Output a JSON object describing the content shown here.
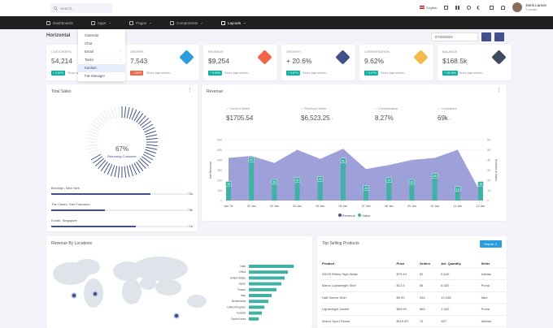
{
  "search": {
    "placeholder": "Search..."
  },
  "header": {
    "language": "English",
    "user_name": "Doris Larson",
    "user_role": "Founder"
  },
  "nav": {
    "items": [
      {
        "label": "Dashboards",
        "active": false,
        "has_caret": false
      },
      {
        "label": "Apps",
        "active": false,
        "has_caret": true
      },
      {
        "label": "Pages",
        "active": false,
        "has_caret": true
      },
      {
        "label": "Components",
        "active": false,
        "has_caret": true
      },
      {
        "label": "Layouts",
        "active": true,
        "has_caret": true
      }
    ]
  },
  "apps_menu": {
    "items": [
      {
        "label": "Calendar",
        "arrow": false
      },
      {
        "label": "Chat",
        "arrow": false
      },
      {
        "label": "Email",
        "arrow": true
      },
      {
        "label": "Tasks",
        "arrow": true
      },
      {
        "label": "Kanban",
        "arrow": false,
        "active": true
      },
      {
        "label": "File Manager",
        "arrow": false
      }
    ]
  },
  "page": {
    "title": "Horizontal",
    "date": "07/26/2023"
  },
  "stats": [
    {
      "label": "CUSTOMERS",
      "value": "54,214",
      "badge": "+ 2.92%",
      "badge_color": "#0ab39c",
      "since": "Since last month",
      "icon_color": "#ffffff"
    },
    {
      "label": "ORDERS",
      "value": "7,543",
      "badge": "- 1.80%",
      "badge_color": "#f06548",
      "since": "Since last month",
      "icon_color": "#299cdb"
    },
    {
      "label": "REVENUE",
      "value": "$9,254",
      "badge": "+ 5.98%",
      "badge_color": "#0ab39c",
      "since": "Since last month",
      "icon_color": "#f06548"
    },
    {
      "label": "GROWTH",
      "value": "+ 20.6%",
      "badge": "+ 4.67%",
      "badge_color": "#0ab39c",
      "since": "Since last month",
      "icon_color": "#405189"
    },
    {
      "label": "CONVERSATION",
      "value": "9.62%",
      "badge": "+ 3.07%",
      "badge_color": "#0ab39c",
      "since": "Since last month",
      "icon_color": "#f7b84b"
    },
    {
      "label": "BALANCE",
      "value": "$168.5k",
      "badge": "+ 18.30%",
      "badge_color": "#0ab39c",
      "since": "Since last month",
      "icon_color": "#3d4a5f"
    }
  ],
  "total_sales": {
    "title": "Total Sales",
    "gauge_value": 67,
    "gauge_label": "67%",
    "gauge_caption": "Returning Customer",
    "cities": [
      {
        "name": "Brooklyn, New York",
        "value": "72k",
        "pct": 72
      },
      {
        "name": "The Castro, San Francisco",
        "value": "39k",
        "pct": 39
      },
      {
        "name": "Kovan, Singapore",
        "value": "61k",
        "pct": 61
      }
    ]
  },
  "revenue": {
    "title": "Revenue",
    "metrics": [
      {
        "label": "Current Week",
        "value": "$1705.54",
        "trend": ""
      },
      {
        "label": "Previous Week",
        "value": "$6,523.25",
        "trend": "up"
      },
      {
        "label": "Conversation",
        "value": "8.27%",
        "trend": ""
      },
      {
        "label": "Customers",
        "value": "69k",
        "trend": "down"
      }
    ]
  },
  "chart_data": {
    "type": "bar",
    "title": "",
    "xlabel": "",
    "categories": [
      "Jan '01",
      "02 Jan",
      "03 Jan",
      "04 Jan",
      "05 Jan",
      "06 Jan",
      "07 Jan",
      "08 Jan",
      "09 Jan",
      "10 Jan",
      "11 Jan",
      "12 Jan"
    ],
    "series": [
      {
        "name": "Revenue",
        "type": "area",
        "axis": "left",
        "values": [
          420,
          440,
          370,
          500,
          410,
          510,
          310,
          350,
          400,
          420,
          500,
          80
        ]
      },
      {
        "name": "Sales",
        "type": "bar",
        "axis": "right",
        "values": [
          18,
          42,
          20,
          22,
          23,
          41,
          14,
          22,
          20,
          26,
          13,
          18
        ]
      }
    ],
    "ylabel_left": "Net Revenue",
    "ylabel_right": "Number of Sales",
    "ylim_left": [
      0,
      600
    ],
    "ylim_right": [
      0,
      60
    ],
    "yticks_left": [
      "600",
      "500",
      "400",
      "300",
      "200",
      "100",
      "0"
    ],
    "yticks_right": [
      "60",
      "50",
      "40",
      "30",
      "20",
      "10",
      "0"
    ],
    "colors": {
      "Revenue": "#8d8fd2",
      "Sales": "#3fb1a5"
    },
    "legend": "bottom",
    "grid": true
  },
  "locations": {
    "title": "Revenue By Locations",
    "countries": [
      "India",
      "China",
      "United States",
      "Japan",
      "France",
      "Italy",
      "Netherlands",
      "United Kingdom",
      "Canada",
      "South Korea"
    ],
    "values": [
      1380,
      1200,
      1100,
      1000,
      850,
      700,
      600,
      480,
      400,
      300
    ]
  },
  "products": {
    "title": "Top Selling Products",
    "export": "Export",
    "columns": [
      "Product",
      "Price",
      "Orders",
      "Avl. Quantity",
      "Seller"
    ],
    "rows": [
      [
        "ASOS Ridley High Waist",
        "$79.49",
        "82",
        "8,540",
        "Adidas"
      ],
      [
        "Marco Lightweight Shirt",
        "$12.5",
        "58",
        "6,320",
        "Puma"
      ],
      [
        "Half Sleeve Shirt",
        "$9.99",
        "254",
        "10,258",
        "Nike"
      ],
      [
        "Lightweight Jacket",
        "$69.99",
        "560",
        "1,020",
        "Puma"
      ],
      [
        "Marco Sport Shoes",
        "$119.99",
        "75",
        "357",
        "Adidas"
      ],
      [
        "Custom Women's T-shirts",
        "$45.00",
        "85",
        "135",
        "Branded"
      ]
    ]
  }
}
